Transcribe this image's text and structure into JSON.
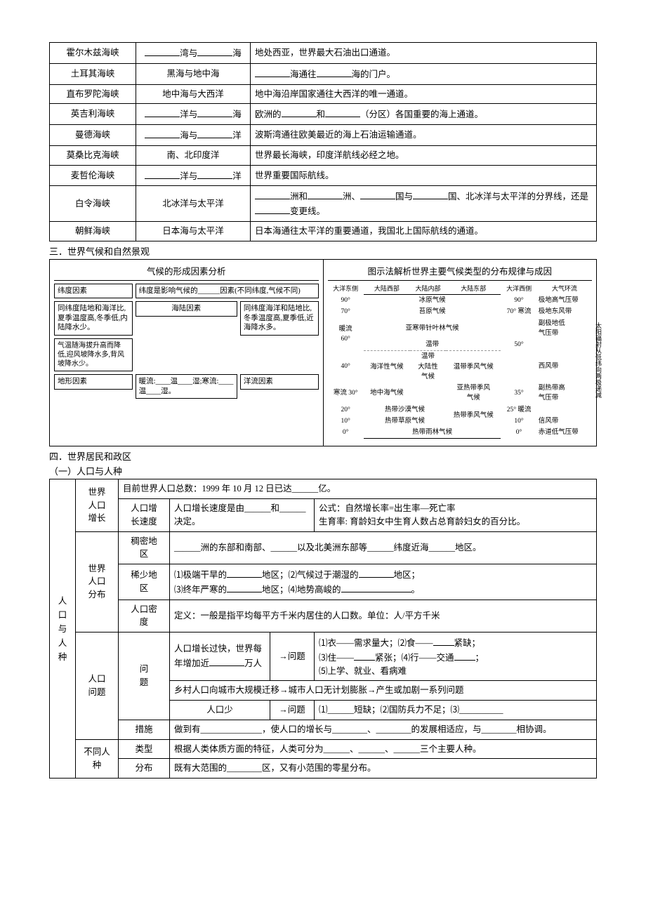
{
  "straits_table": {
    "rows": [
      {
        "name": "霍尔木兹海峡",
        "connects": "______湾与______海",
        "desc": "地处西亚，世界最大石油出口通道。"
      },
      {
        "name": "土耳其海峡",
        "connects": "黑海与地中海",
        "desc": "______海通往______海的门户。"
      },
      {
        "name": "直布罗陀海峡",
        "connects": "地中海与大西洋",
        "desc": "地中海沿岸国家通往大西洋的唯一通道。"
      },
      {
        "name": "英吉利海峡",
        "connects": "______洋与______海",
        "desc": "欧洲的______和______（分区）各国重要的海上通道。"
      },
      {
        "name": "曼德海峡",
        "connects": "______海与______洋",
        "desc": "波斯湾通往欧美最近的海上石油运输通道。"
      },
      {
        "name": "莫桑比克海峡",
        "connects": "南、北印度洋",
        "desc": "世界最长海峡，印度洋航线必经之地。"
      },
      {
        "name": "麦哲伦海峡",
        "connects": "______洋与______洋",
        "desc": "世界重要国际航线。"
      },
      {
        "name": "白令海峡",
        "connects": "北冰洋与太平洋",
        "desc": "______洲和______洲、______国与______国、北冰洋与太平洋的分界线，还是______变更线。"
      },
      {
        "name": "朝鲜海峡",
        "connects": "日本海与太平洋",
        "desc": "日本海通往太平洋的重要通道，我国北上国际航线的通道。"
      }
    ]
  },
  "section3": "三．世界气候和自然景观",
  "diagram_left_title": "气候的形成因素分析",
  "diagram_right_title": "图示法解析世界主要气候类型的分布规律与成因",
  "factors": {
    "latitude": "纬度因素",
    "latitude_desc": "纬度是影响气候的______因素(不同纬度,气候不同)",
    "land_left": "同纬度陆地和海洋比,夏季温度高,冬季低,内陆降水少。",
    "sea_land": "海陆因素",
    "land_right": "同纬度海洋和陆地比,冬季温度高,夏季低,近海降水多。",
    "terrain_desc": "气温随海拔升高而降低,迎风坡降水多,背风坡降水少。",
    "terrain": "地形因素",
    "current_desc": "暖流:____温____湿;寒流:____温____湿。",
    "current": "洋流因素"
  },
  "climate_zones": {
    "headers": [
      "大洋东侧",
      "大陆西部",
      "大陆内部",
      "大陆东部",
      "大洋西侧",
      "大气环流"
    ],
    "side_left": "暖流",
    "side_left2": "寒流",
    "side_right": "太阳辐射从低纬向两极递减",
    "rows": [
      {
        "lat": "90°",
        "zones": [
          "冰原气候"
        ],
        "circ": "极地高气压带"
      },
      {
        "lat": "70°",
        "zones": [
          "苔原气候"
        ],
        "circ": "极地东风带",
        "note": "寒流"
      },
      {
        "lat": "60°",
        "zones": [
          "亚寒带针叶林气候"
        ],
        "circ": "副极地低气压带"
      },
      {
        "lat": "50°",
        "zones": [
          "温带"
        ],
        "circ": ""
      },
      {
        "lat": "40°",
        "zones": [
          "海洋性气候",
          "温带大陆性气候",
          "温带季风气候"
        ],
        "circ": "西风带"
      },
      {
        "lat": "35°",
        "zones": [
          "地中海气候",
          "",
          "亚热带季风气候"
        ],
        "circ": "副热带高气压带"
      },
      {
        "lat": "30°",
        "zones": [
          "热带沙漠气候"
        ],
        "circ": ""
      },
      {
        "lat": "20°",
        "zones": [
          "热带草原气候",
          "热带季风气候"
        ],
        "circ": "信风带",
        "note": "暖流"
      },
      {
        "lat": "10°",
        "zones": [
          ""
        ],
        "circ": ""
      },
      {
        "lat": "0°",
        "zones": [
          "热带雨林气候"
        ],
        "circ": "赤道低气压带"
      }
    ]
  },
  "section4": "四．世界居民和政区",
  "section4_1": "（一）人口与人种",
  "pop_table": {
    "main_label": "人口与人种",
    "world_pop": "世界人口增长",
    "total": "目前世界人口总数：1999 年 10 月 12 日已达______亿。",
    "growth_rate": "人口增长速度",
    "growth_desc": "人口增长速度是由______和______决定。",
    "formula": "公式：自然增长率=出生率—死亡率\n生育率: 育龄妇女中生育人数占总育龄妇女的百分比。",
    "dist_label": "世界人口分布",
    "dense": "稠密地区",
    "dense_desc": "______洲的东部和南部、______以及北美洲东部等______纬度近海______地区。",
    "sparse": "稀少地区",
    "sparse_desc": "⑴极端干旱的______地区；⑵气候过于潮湿的______地区；\n⑶终年严寒的______地区；⑷地势高峻的____________。",
    "density": "人口密度",
    "density_desc": "定义：一般是指平均每平方千米内居住的人口数。单位：人/平方千米",
    "problem_label": "人口问题",
    "problem": "问题",
    "fast_growth": "人口增长过快，世界每年增加近______万人",
    "arrow": "→问题",
    "problems_list": "⑴衣——需求量大；⑵食——______紧缺；\n⑶住——______紧张；⑷行——交通______；\n⑸上学、就业、看病难",
    "rural": "乡村人口向城市大规模迁移→城市人口无计划膨胀→产生或加剧一系列问题",
    "few_pop": "人口少",
    "few_problems": "⑴______短缺；⑵国防兵力不足；⑶__________",
    "measures": "措施",
    "measures_desc": "做到有______________，使人口的增长与________、________的发展相适应，与________相协调。",
    "race_label": "不同人种",
    "race_type": "类型",
    "race_type_desc": "根据人类体质方面的特征，人类可分为______、______、______三个主要人种。",
    "race_dist": "分布",
    "race_dist_desc": "既有大范围的________区，又有小范围的零星分布。"
  }
}
